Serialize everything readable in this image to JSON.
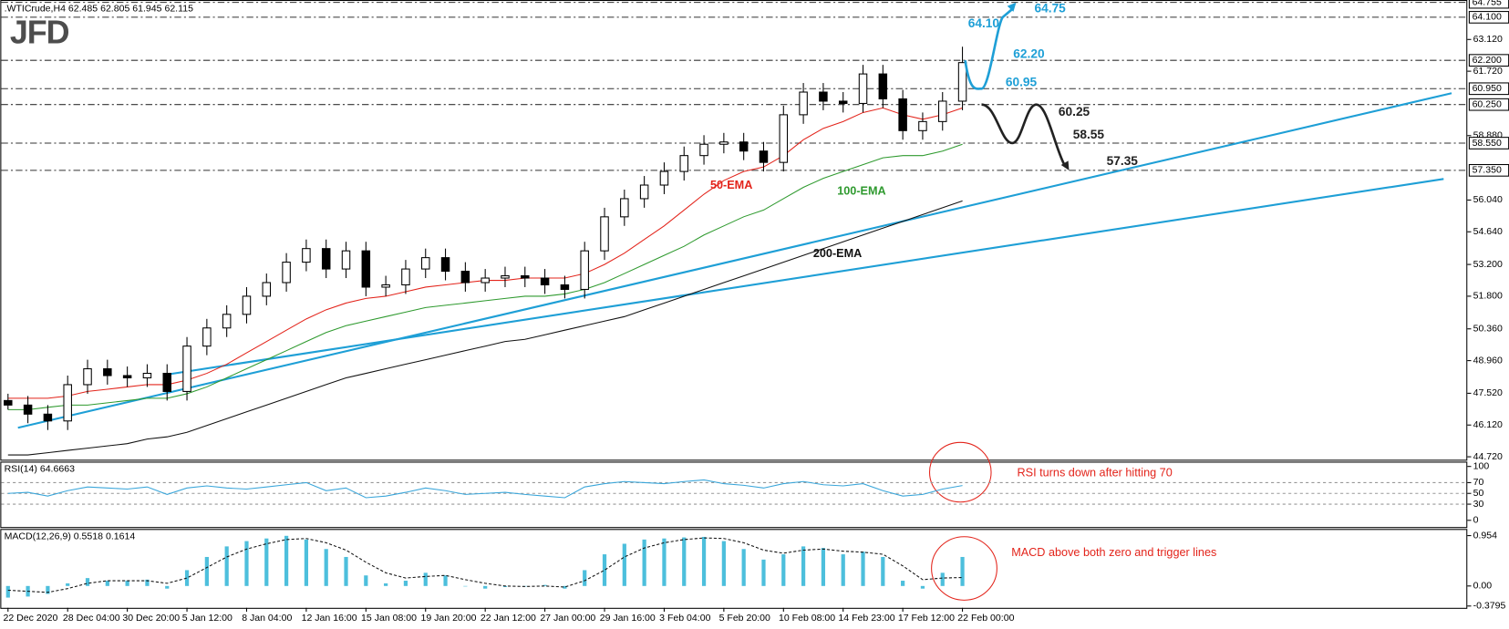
{
  "chart_data": [
    {
      "type": "candlestick",
      "title": ".WTICrude,H4  62.485 62.805 61.945 62.115",
      "watermark": "JFD",
      "categories": [
        "22 Dec 2020",
        null,
        null,
        "28 Dec 04:00",
        null,
        null,
        "30 Dec 20:00",
        null,
        null,
        "5 Jan 12:00",
        null,
        null,
        "8 Jan 04:00",
        null,
        null,
        "12 Jan 16:00",
        null,
        null,
        "15 Jan 08:00",
        null,
        null,
        "19 Jan 20:00",
        null,
        null,
        "22 Jan 12:00",
        null,
        null,
        "27 Jan 00:00",
        null,
        null,
        "29 Jan 16:00",
        null,
        null,
        "3 Feb 04:00",
        null,
        null,
        "5 Feb 20:00",
        null,
        null,
        "10 Feb 08:00",
        null,
        null,
        "14 Feb 23:00",
        null,
        null,
        "17 Feb 12:00",
        null,
        null,
        "22 Feb 00:00"
      ],
      "open": [
        47.2,
        47.0,
        46.6,
        46.3,
        47.9,
        48.6,
        48.3,
        48.2,
        48.4,
        47.6,
        49.6,
        50.4,
        51.0,
        51.8,
        52.4,
        53.3,
        53.9,
        53.0,
        53.8,
        52.2,
        52.3,
        53.0,
        53.5,
        52.9,
        52.4,
        52.6,
        52.7,
        52.6,
        52.3,
        52.1,
        53.8,
        55.3,
        56.1,
        56.7,
        57.3,
        58.0,
        58.5,
        58.6,
        58.2,
        57.7,
        59.8,
        60.8,
        60.4,
        60.3,
        61.6,
        60.5,
        59.1,
        59.5,
        60.4
      ],
      "high": [
        47.5,
        47.4,
        47.0,
        48.3,
        49.0,
        49.0,
        48.7,
        48.8,
        48.8,
        50.0,
        50.8,
        51.4,
        52.2,
        52.8,
        53.7,
        54.3,
        54.3,
        54.2,
        54.2,
        52.7,
        53.4,
        53.9,
        53.9,
        53.3,
        53.0,
        53.1,
        53.1,
        53.0,
        52.7,
        54.2,
        55.7,
        56.5,
        57.1,
        57.7,
        58.4,
        58.9,
        59.0,
        59.0,
        58.6,
        60.2,
        61.2,
        61.2,
        60.8,
        62.0,
        62.0,
        60.9,
        59.9,
        60.8,
        62.8
      ],
      "low": [
        46.8,
        46.2,
        45.9,
        45.9,
        47.5,
        47.9,
        47.8,
        47.8,
        47.2,
        47.2,
        49.2,
        50.0,
        50.6,
        51.4,
        52.0,
        52.9,
        52.6,
        52.6,
        51.8,
        51.8,
        51.9,
        52.6,
        52.5,
        52.0,
        52.0,
        52.2,
        52.2,
        51.9,
        51.7,
        51.7,
        53.4,
        54.9,
        55.7,
        56.3,
        56.9,
        57.6,
        58.1,
        57.8,
        57.3,
        57.3,
        59.4,
        60.0,
        59.9,
        59.9,
        60.1,
        58.7,
        58.7,
        59.1,
        60.0
      ],
      "close": [
        47.0,
        46.6,
        46.3,
        47.9,
        48.6,
        48.3,
        48.2,
        48.4,
        47.6,
        49.6,
        50.4,
        51.0,
        51.8,
        52.4,
        53.3,
        53.9,
        53.0,
        53.8,
        52.2,
        52.3,
        53.0,
        53.5,
        52.9,
        52.4,
        52.6,
        52.7,
        52.6,
        52.3,
        52.1,
        53.8,
        55.3,
        56.1,
        56.7,
        57.3,
        58.0,
        58.5,
        58.6,
        58.2,
        57.7,
        59.8,
        60.8,
        60.4,
        60.3,
        61.6,
        60.5,
        59.1,
        59.5,
        60.4,
        62.1
      ],
      "series": [
        {
          "name": "50-EMA",
          "color": "#e3241b",
          "values": [
            47.3,
            47.3,
            47.3,
            47.4,
            47.6,
            47.7,
            47.8,
            47.9,
            47.9,
            48.1,
            48.4,
            48.8,
            49.3,
            49.8,
            50.3,
            50.8,
            51.2,
            51.5,
            51.7,
            51.8,
            52.0,
            52.2,
            52.3,
            52.4,
            52.5,
            52.5,
            52.6,
            52.6,
            52.6,
            52.8,
            53.2,
            53.7,
            54.3,
            54.9,
            55.6,
            56.3,
            56.9,
            57.3,
            57.5,
            58.0,
            58.7,
            59.2,
            59.5,
            59.9,
            60.1,
            59.8,
            59.6,
            59.8,
            60.1
          ]
        },
        {
          "name": "100-EMA",
          "color": "#2f9a2f",
          "values": [
            46.8,
            46.8,
            46.9,
            47.0,
            47.0,
            47.1,
            47.2,
            47.3,
            47.3,
            47.5,
            47.8,
            48.2,
            48.6,
            49.0,
            49.4,
            49.8,
            50.2,
            50.5,
            50.7,
            50.9,
            51.1,
            51.3,
            51.4,
            51.5,
            51.6,
            51.7,
            51.8,
            51.8,
            51.9,
            52.1,
            52.4,
            52.8,
            53.2,
            53.6,
            54.0,
            54.5,
            54.9,
            55.3,
            55.6,
            56.1,
            56.6,
            57.0,
            57.3,
            57.6,
            57.9,
            58.0,
            58.0,
            58.2,
            58.5
          ]
        },
        {
          "name": "200-EMA",
          "color": "#111111",
          "values": [
            44.8,
            44.8,
            44.9,
            45.0,
            45.1,
            45.2,
            45.3,
            45.5,
            45.6,
            45.8,
            46.1,
            46.4,
            46.7,
            47.0,
            47.3,
            47.6,
            47.9,
            48.2,
            48.4,
            48.6,
            48.8,
            49.0,
            49.2,
            49.4,
            49.6,
            49.8,
            49.9,
            50.1,
            50.3,
            50.5,
            50.7,
            50.9,
            51.2,
            51.5,
            51.8,
            52.1,
            52.4,
            52.7,
            53.0,
            53.3,
            53.6,
            53.9,
            54.2,
            54.5,
            54.8,
            55.1,
            55.4,
            55.7,
            56.0
          ]
        }
      ],
      "trendlines": [
        {
          "color": "#1e9fd6",
          "x": [
            0.5,
            72.6
          ],
          "y": [
            46.0,
            60.75
          ]
        },
        {
          "color": "#1e9fd6",
          "x": [
            7.8,
            72.2
          ],
          "y": [
            48.32,
            56.97
          ]
        }
      ],
      "levels": [
        {
          "value": 64.755,
          "label": "64.755"
        },
        {
          "value": 64.1,
          "label": "64.100"
        },
        {
          "value": 62.2,
          "label": "62.200"
        },
        {
          "value": 60.95,
          "label": "60.950"
        },
        {
          "value": 60.25,
          "label": "60.250"
        },
        {
          "value": 58.55,
          "label": "58.550"
        },
        {
          "value": 57.35,
          "label": "57.350"
        }
      ],
      "scenarios": [
        {
          "color": "#1e9fd6",
          "points": [
            {
              "value": 62.2,
              "label": "62.20"
            },
            {
              "value": 60.95,
              "label": "60.95"
            },
            {
              "value": 64.1,
              "label": "64.10"
            },
            {
              "value": 64.75,
              "label": "64.75"
            }
          ]
        },
        {
          "color": "#222222",
          "points": [
            {
              "value": 60.25,
              "label": "60.25"
            },
            {
              "value": 58.55,
              "label": "58.55"
            },
            {
              "value": 57.35,
              "label": "57.35"
            }
          ]
        }
      ],
      "ylim": [
        44.59,
        64.86
      ],
      "yticks": [
        {
          "value": 44.72,
          "label": "44.720"
        },
        {
          "value": 46.12,
          "label": "46.120"
        },
        {
          "value": 47.52,
          "label": "47.520"
        },
        {
          "value": 48.96,
          "label": "48.960"
        },
        {
          "value": 50.36,
          "label": "50.360"
        },
        {
          "value": 51.8,
          "label": "51.800"
        },
        {
          "value": 53.2,
          "label": "53.200"
        },
        {
          "value": 54.64,
          "label": "54.640"
        },
        {
          "value": 56.04,
          "label": "56.040"
        },
        {
          "value": 58.88,
          "label": "58.880"
        },
        {
          "value": 61.72,
          "label": "61.720"
        },
        {
          "value": 63.12,
          "label": "63.120"
        }
      ]
    },
    {
      "type": "line",
      "title": "RSI(14) 64.6663",
      "annotation": "RSI turns down after hitting 70",
      "series": [
        {
          "color": "#3aa6da",
          "values": [
            50,
            52,
            45,
            55,
            62,
            60,
            58,
            62,
            48,
            60,
            64,
            60,
            58,
            62,
            66,
            70,
            55,
            60,
            42,
            45,
            52,
            60,
            55,
            48,
            50,
            52,
            48,
            45,
            42,
            62,
            68,
            72,
            70,
            68,
            72,
            75,
            68,
            65,
            60,
            68,
            72,
            66,
            64,
            68,
            55,
            45,
            48,
            58,
            64.7
          ]
        }
      ],
      "ylim": [
        0,
        100
      ],
      "yticks": [
        0,
        30,
        50,
        70,
        100
      ],
      "dashed_grid": true
    },
    {
      "type": "macd",
      "title": "MACD(12,26,9) 0.5518 0.1614",
      "annotation": "MACD above both zero and trigger lines",
      "values": [
        -0.22,
        -0.2,
        -0.15,
        0.05,
        0.15,
        0.1,
        0.1,
        0.12,
        -0.05,
        0.3,
        0.55,
        0.75,
        0.85,
        0.9,
        0.95,
        0.88,
        0.7,
        0.55,
        0.2,
        0.05,
        0.1,
        0.25,
        0.2,
        0.0,
        -0.05,
        -0.02,
        0.0,
        0.02,
        -0.05,
        0.3,
        0.6,
        0.8,
        0.88,
        0.9,
        0.92,
        0.93,
        0.85,
        0.7,
        0.5,
        0.6,
        0.75,
        0.72,
        0.6,
        0.65,
        0.55,
        0.1,
        -0.05,
        0.25,
        0.55
      ],
      "color": "#4dbfdc",
      "signal": [
        -0.08,
        -0.1,
        -0.12,
        -0.05,
        0.05,
        0.1,
        0.1,
        0.1,
        0.05,
        0.15,
        0.35,
        0.55,
        0.7,
        0.8,
        0.88,
        0.9,
        0.82,
        0.68,
        0.45,
        0.25,
        0.15,
        0.18,
        0.2,
        0.12,
        0.05,
        0.0,
        -0.01,
        0.0,
        -0.02,
        0.1,
        0.3,
        0.55,
        0.72,
        0.82,
        0.88,
        0.91,
        0.9,
        0.82,
        0.68,
        0.62,
        0.68,
        0.7,
        0.66,
        0.64,
        0.6,
        0.38,
        0.12,
        0.15,
        0.16
      ],
      "signal_color": "#111111",
      "ylim": [
        -0.414,
        1.08
      ],
      "yticks": [
        {
          "value": -0.3795,
          "label": "-0.3795"
        },
        {
          "value": 0,
          "label": "0.00"
        },
        0.954
      ]
    }
  ]
}
